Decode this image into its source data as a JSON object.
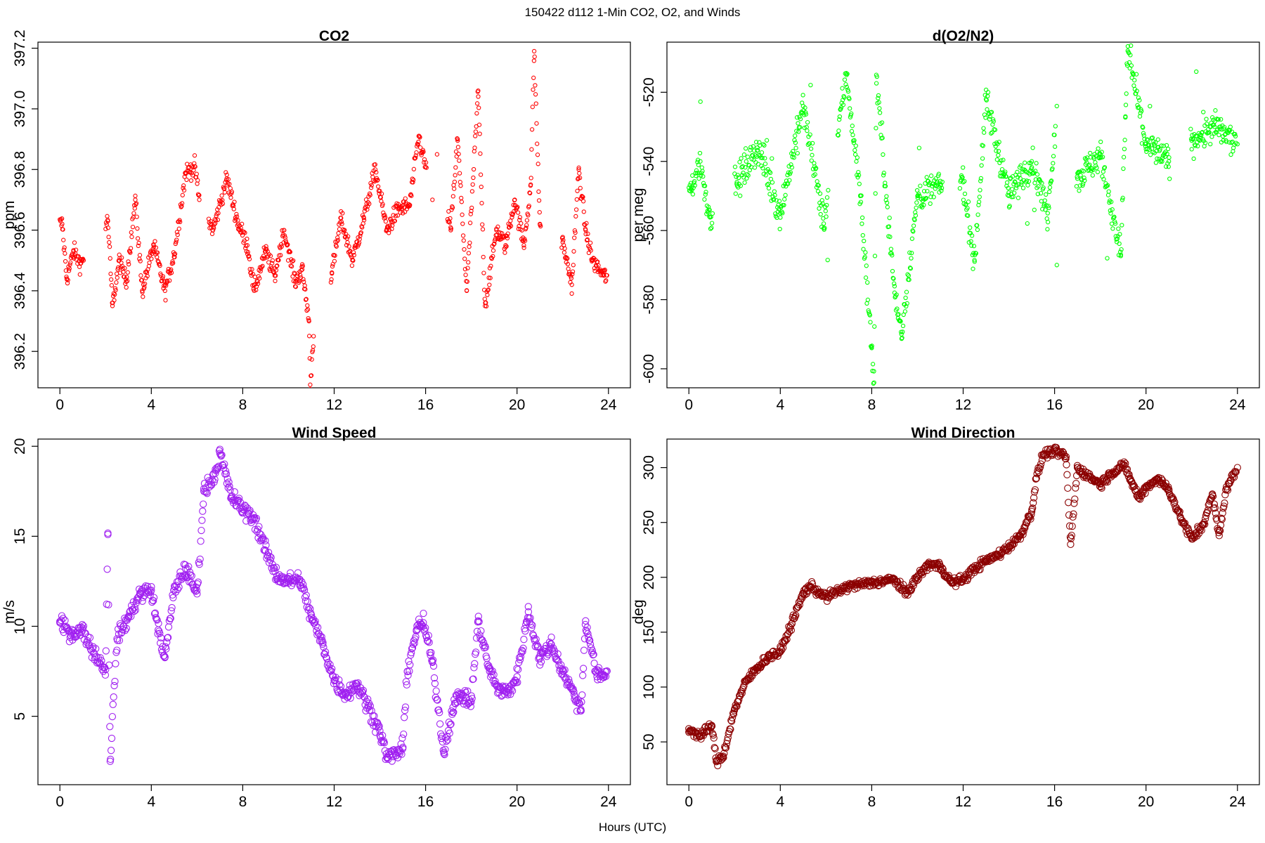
{
  "figure": {
    "title": "150422   d112   1-Min CO2, O2, and Winds",
    "xlabel": "Hours (UTC)"
  },
  "chart_data": [
    {
      "type": "scatter",
      "title": "CO2",
      "xlabel": "",
      "ylabel": "ppm",
      "color": "#ff0000",
      "marker_size": "small",
      "xlim": [
        -0.96,
        24.96
      ],
      "ylim": [
        396.08,
        397.22
      ],
      "xticks": [
        0,
        4,
        8,
        12,
        16,
        20,
        24
      ],
      "yticks": [
        396.2,
        396.4,
        396.6,
        396.8,
        397.0,
        397.2
      ],
      "ytick_labels": [
        "396.2",
        "396.4",
        "396.6",
        "396.8",
        "397.0",
        "397.2"
      ],
      "grid": false,
      "key_points": [
        [
          0.1,
          396.62
        ],
        [
          0.3,
          396.44
        ],
        [
          0.6,
          396.53
        ],
        [
          0.9,
          396.49
        ],
        [
          2.1,
          396.63
        ],
        [
          2.3,
          396.35
        ],
        [
          2.6,
          396.5
        ],
        [
          2.9,
          396.43
        ],
        [
          3.3,
          396.7
        ],
        [
          3.6,
          396.4
        ],
        [
          4.1,
          396.55
        ],
        [
          4.6,
          396.4
        ],
        [
          5.0,
          396.52
        ],
        [
          5.5,
          396.79
        ],
        [
          5.9,
          396.81
        ],
        [
          6.1,
          396.7
        ],
        [
          6.7,
          396.6
        ],
        [
          7.3,
          396.77
        ],
        [
          7.8,
          396.62
        ],
        [
          8.2,
          396.55
        ],
        [
          8.5,
          396.4
        ],
        [
          9.0,
          396.53
        ],
        [
          9.4,
          396.45
        ],
        [
          9.8,
          396.6
        ],
        [
          10.3,
          396.43
        ],
        [
          10.6,
          396.47
        ],
        [
          10.9,
          396.3
        ],
        [
          10.95,
          396.09
        ],
        [
          11.1,
          396.25
        ],
        [
          11.9,
          396.46
        ],
        [
          12.3,
          396.64
        ],
        [
          12.8,
          396.5
        ],
        [
          13.3,
          396.64
        ],
        [
          13.8,
          396.8
        ],
        [
          14.3,
          396.6
        ],
        [
          14.8,
          396.67
        ],
        [
          15.3,
          396.68
        ],
        [
          15.7,
          396.91
        ],
        [
          16.3,
          396.7
        ],
        [
          16.5,
          396.85
        ],
        [
          17.1,
          396.6
        ],
        [
          17.4,
          396.9
        ],
        [
          17.8,
          396.4
        ],
        [
          18.3,
          397.06
        ],
        [
          18.6,
          396.35
        ],
        [
          19.1,
          396.6
        ],
        [
          19.5,
          396.55
        ],
        [
          19.9,
          396.7
        ],
        [
          20.3,
          396.55
        ],
        [
          20.6,
          396.75
        ],
        [
          20.75,
          397.19
        ],
        [
          21.0,
          396.62
        ],
        [
          22.0,
          396.56
        ],
        [
          22.4,
          396.42
        ],
        [
          22.7,
          396.8
        ],
        [
          23.0,
          396.6
        ],
        [
          23.3,
          396.5
        ],
        [
          23.8,
          396.45
        ]
      ]
    },
    {
      "type": "scatter",
      "title": "d(O2/N2)",
      "xlabel": "",
      "ylabel": "per meg",
      "color": "#00ff00",
      "marker_size": "small",
      "xlim": [
        -0.96,
        24.96
      ],
      "ylim": [
        -605.5,
        -505.5
      ],
      "xticks": [
        0,
        4,
        8,
        12,
        16,
        20,
        24
      ],
      "yticks": [
        -600,
        -580,
        -560,
        -540,
        -520
      ],
      "ytick_labels": [
        "-600",
        "-580",
        "-560",
        "-540",
        "-520"
      ],
      "grid": false,
      "key_points": [
        [
          0.1,
          -548
        ],
        [
          0.5,
          -540
        ],
        [
          0.9,
          -556
        ],
        [
          2.1,
          -546
        ],
        [
          3.0,
          -536
        ],
        [
          4.0,
          -555
        ],
        [
          5.0,
          -524
        ],
        [
          5.9,
          -558
        ],
        [
          6.9,
          -515
        ],
        [
          7.5,
          -550
        ],
        [
          8.0,
          -594
        ],
        [
          8.1,
          -604
        ],
        [
          8.2,
          -515
        ],
        [
          9.0,
          -578
        ],
        [
          9.3,
          -590
        ],
        [
          10.0,
          -550
        ],
        [
          11.0,
          -547
        ],
        [
          12.0,
          -546
        ],
        [
          12.5,
          -569
        ],
        [
          13.0,
          -522
        ],
        [
          14.0,
          -550
        ],
        [
          15.0,
          -540
        ],
        [
          15.7,
          -555
        ],
        [
          16.1,
          -524
        ],
        [
          16.1,
          -570
        ],
        [
          17.0,
          -545
        ],
        [
          18.0,
          -538
        ],
        [
          18.9,
          -567
        ],
        [
          19.1,
          -527
        ],
        [
          19.2,
          -508
        ],
        [
          20.0,
          -535
        ],
        [
          21.0,
          -540
        ],
        [
          22.0,
          -534
        ],
        [
          23.0,
          -530
        ],
        [
          24.0,
          -535
        ]
      ]
    },
    {
      "type": "scatter",
      "title": "Wind Speed",
      "xlabel": "",
      "ylabel": "m/s",
      "color": "#a020f0",
      "marker_size": "medium",
      "xlim": [
        -0.96,
        24.96
      ],
      "ylim": [
        1.2,
        20.4
      ],
      "xticks": [
        0,
        4,
        8,
        12,
        16,
        20,
        24
      ],
      "yticks": [
        5,
        10,
        15,
        20
      ],
      "ytick_labels": [
        "5",
        "10",
        "15",
        "20"
      ],
      "grid": false,
      "key_points": [
        [
          0.0,
          10.2
        ],
        [
          0.5,
          9.6
        ],
        [
          1.0,
          9.8
        ],
        [
          1.5,
          8.5
        ],
        [
          2.0,
          7.6
        ],
        [
          2.1,
          15.1
        ],
        [
          2.2,
          2.5
        ],
        [
          2.5,
          9.3
        ],
        [
          3.0,
          10.5
        ],
        [
          3.5,
          11.8
        ],
        [
          4.0,
          12.0
        ],
        [
          4.3,
          9.8
        ],
        [
          4.6,
          8.3
        ],
        [
          5.0,
          12.0
        ],
        [
          5.5,
          13.2
        ],
        [
          6.0,
          11.8
        ],
        [
          6.3,
          17.5
        ],
        [
          6.8,
          18.5
        ],
        [
          7.0,
          19.6
        ],
        [
          7.5,
          17.2
        ],
        [
          8.0,
          16.5
        ],
        [
          8.5,
          16.0
        ],
        [
          9.0,
          14.2
        ],
        [
          9.5,
          12.8
        ],
        [
          10.0,
          12.5
        ],
        [
          10.5,
          12.6
        ],
        [
          11.0,
          10.5
        ],
        [
          11.5,
          9.0
        ],
        [
          12.0,
          7.0
        ],
        [
          12.5,
          6.2
        ],
        [
          13.0,
          6.8
        ],
        [
          13.5,
          5.5
        ],
        [
          14.0,
          4.2
        ],
        [
          14.3,
          2.7
        ],
        [
          14.8,
          3.0
        ],
        [
          15.0,
          3.2
        ],
        [
          15.2,
          7.5
        ],
        [
          15.6,
          9.8
        ],
        [
          15.9,
          10.2
        ],
        [
          16.3,
          8.0
        ],
        [
          16.8,
          3.0
        ],
        [
          17.2,
          5.5
        ],
        [
          17.5,
          6.2
        ],
        [
          18.0,
          5.8
        ],
        [
          18.3,
          10.3
        ],
        [
          18.8,
          7.5
        ],
        [
          19.2,
          6.5
        ],
        [
          19.6,
          6.3
        ],
        [
          20.0,
          7.2
        ],
        [
          20.5,
          10.8
        ],
        [
          21.0,
          8.2
        ],
        [
          21.5,
          9.0
        ],
        [
          22.0,
          7.5
        ],
        [
          22.5,
          6.2
        ],
        [
          22.8,
          5.3
        ],
        [
          23.0,
          10.3
        ],
        [
          23.5,
          7.2
        ],
        [
          23.8,
          7.3
        ]
      ]
    },
    {
      "type": "scatter",
      "title": "Wind Direction",
      "xlabel": "",
      "ylabel": "deg",
      "color": "#8b0000",
      "marker_size": "medium",
      "xlim": [
        -0.96,
        24.96
      ],
      "ylim": [
        11,
        326
      ],
      "xticks": [
        0,
        4,
        8,
        12,
        16,
        20,
        24
      ],
      "yticks": [
        50,
        100,
        150,
        200,
        250,
        300
      ],
      "ytick_labels": [
        "50",
        "100",
        "150",
        "200",
        "250",
        "300"
      ],
      "grid": false,
      "key_points": [
        [
          0.0,
          62
        ],
        [
          0.5,
          55
        ],
        [
          1.0,
          65
        ],
        [
          1.2,
          32
        ],
        [
          1.5,
          37
        ],
        [
          2.0,
          80
        ],
        [
          2.5,
          105
        ],
        [
          3.0,
          118
        ],
        [
          3.5,
          128
        ],
        [
          4.0,
          132
        ],
        [
          4.5,
          158
        ],
        [
          5.0,
          185
        ],
        [
          5.3,
          192
        ],
        [
          6.0,
          182
        ],
        [
          7.0,
          192
        ],
        [
          8.0,
          195
        ],
        [
          9.0,
          198
        ],
        [
          9.5,
          185
        ],
        [
          10.0,
          200
        ],
        [
          10.5,
          212
        ],
        [
          11.0,
          210
        ],
        [
          11.5,
          195
        ],
        [
          12.0,
          198
        ],
        [
          12.5,
          208
        ],
        [
          13.0,
          215
        ],
        [
          13.5,
          220
        ],
        [
          14.0,
          228
        ],
        [
          14.5,
          238
        ],
        [
          15.0,
          260
        ],
        [
          15.2,
          290
        ],
        [
          15.5,
          312
        ],
        [
          16.0,
          315
        ],
        [
          16.5,
          310
        ],
        [
          16.7,
          230
        ],
        [
          17.0,
          300
        ],
        [
          17.5,
          292
        ],
        [
          18.0,
          285
        ],
        [
          18.5,
          295
        ],
        [
          19.0,
          303
        ],
        [
          19.3,
          290
        ],
        [
          19.7,
          272
        ],
        [
          20.0,
          282
        ],
        [
          20.5,
          290
        ],
        [
          21.0,
          280
        ],
        [
          21.5,
          255
        ],
        [
          22.0,
          235
        ],
        [
          22.5,
          248
        ],
        [
          22.9,
          275
        ],
        [
          23.2,
          238
        ],
        [
          23.5,
          280
        ],
        [
          24.0,
          300
        ]
      ]
    }
  ]
}
